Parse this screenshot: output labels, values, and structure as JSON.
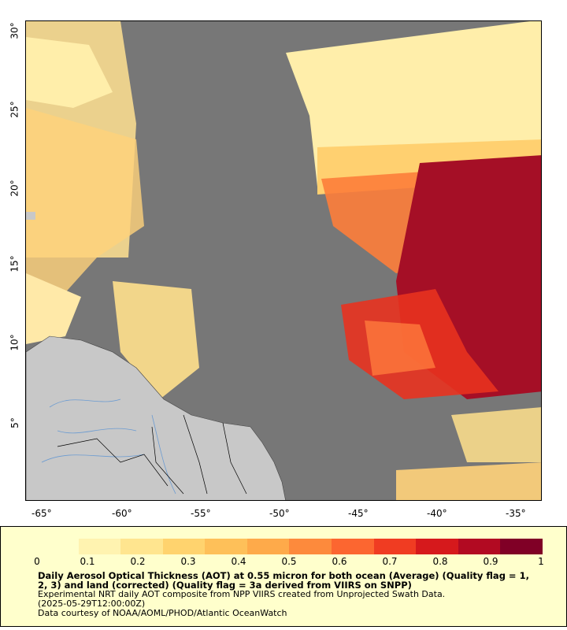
{
  "map": {
    "longitude_labels": [
      "-65°",
      "-60°",
      "-55°",
      "-50°",
      "-45°",
      "-40°",
      "-35°"
    ],
    "latitude_labels": [
      "30°",
      "25°",
      "20°",
      "15°",
      "10°",
      "5°"
    ],
    "colors": {
      "no_data": "#777777",
      "land": "#c8c8c8",
      "rivers": "#6b9bd1",
      "borders": "#000000"
    }
  },
  "legend": {
    "colorbar_ticks": [
      "0",
      "0.1",
      "0.2",
      "0.3",
      "0.4",
      "0.5",
      "0.6",
      "0.7",
      "0.8",
      "0.9",
      "1"
    ],
    "colorbar_colors": [
      "#ffffcc",
      "#fff3b0",
      "#ffe58f",
      "#ffd36e",
      "#fec059",
      "#feaa4a",
      "#fd8a3c",
      "#fc6630",
      "#f03c22",
      "#d6191c",
      "#b20a22",
      "#800026"
    ],
    "title_line": "Daily Aerosol Optical Thickness (AOT) at 0.55 micron for both ocean (Average) (Quality flag = 1, 2, 3) and land (corrected) (Quality flag = 3a derived from VIIRS on SNPP)",
    "line2": "Experimental NRT daily AOT composite from NPP VIIRS created from Unprojected Swath Data.",
    "line3": "(2025-05-29T12:00:00Z)",
    "line4": "Data courtesy of NOAA/AOML/PHOD/Atlantic OceanWatch"
  }
}
